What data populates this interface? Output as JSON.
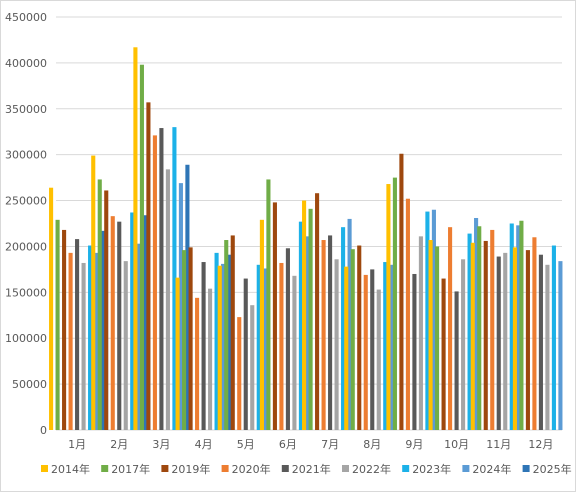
{
  "chart_data": {
    "type": "bar",
    "title": "",
    "xlabel": "",
    "ylabel": "",
    "ylim": [
      0,
      450000
    ],
    "y_ticks": [
      0,
      50000,
      100000,
      150000,
      200000,
      250000,
      300000,
      350000,
      400000,
      450000
    ],
    "grid": true,
    "legend_position": "bottom",
    "categories": [
      "1月",
      "2月",
      "3月",
      "4月",
      "5月",
      "6月",
      "7月",
      "8月",
      "9月",
      "10月",
      "11月",
      "12月"
    ],
    "series": [
      {
        "name": "2014年",
        "color": "#ffc000",
        "values": [
          264000,
          299000,
          417000,
          166000,
          179000,
          229000,
          250000,
          178000,
          268000,
          207000,
          204000,
          199000
        ]
      },
      {
        "name": "2017年",
        "color": "#70ad47",
        "values": [
          229000,
          273000,
          398000,
          196000,
          207000,
          273000,
          241000,
          197000,
          275000,
          200000,
          222000,
          228000
        ]
      },
      {
        "name": "2019年",
        "color": "#9e480e",
        "values": [
          218000,
          261000,
          357000,
          199000,
          212000,
          248000,
          258000,
          201000,
          301000,
          165000,
          206000,
          196000
        ]
      },
      {
        "name": "2020年",
        "color": "#ed7d31",
        "values": [
          193000,
          233000,
          321000,
          144000,
          123000,
          182000,
          207000,
          169000,
          252000,
          221000,
          218000,
          210000
        ]
      },
      {
        "name": "2021年",
        "color": "#595959",
        "values": [
          208000,
          227000,
          329000,
          183000,
          165000,
          198000,
          212000,
          175000,
          170000,
          151000,
          189000,
          191000
        ]
      },
      {
        "name": "2022年",
        "color": "#a5a5a5",
        "values": [
          182000,
          184000,
          284000,
          154000,
          136000,
          168000,
          186000,
          153000,
          211000,
          186000,
          193000,
          180000
        ]
      },
      {
        "name": "2023年",
        "color": "#1cb1e8",
        "values": [
          201000,
          237000,
          330000,
          193000,
          180000,
          227000,
          221000,
          183000,
          238000,
          214000,
          225000,
          201000
        ]
      },
      {
        "name": "2024年",
        "color": "#5b9bd5",
        "values": [
          193000,
          203000,
          269000,
          181000,
          176000,
          211000,
          230000,
          180000,
          240000,
          231000,
          223000,
          184000
        ]
      },
      {
        "name": "2025年",
        "color": "#2e75b6",
        "values": [
          217000,
          234000,
          289000,
          191000,
          null,
          null,
          null,
          null,
          null,
          null,
          null,
          null
        ]
      }
    ]
  }
}
